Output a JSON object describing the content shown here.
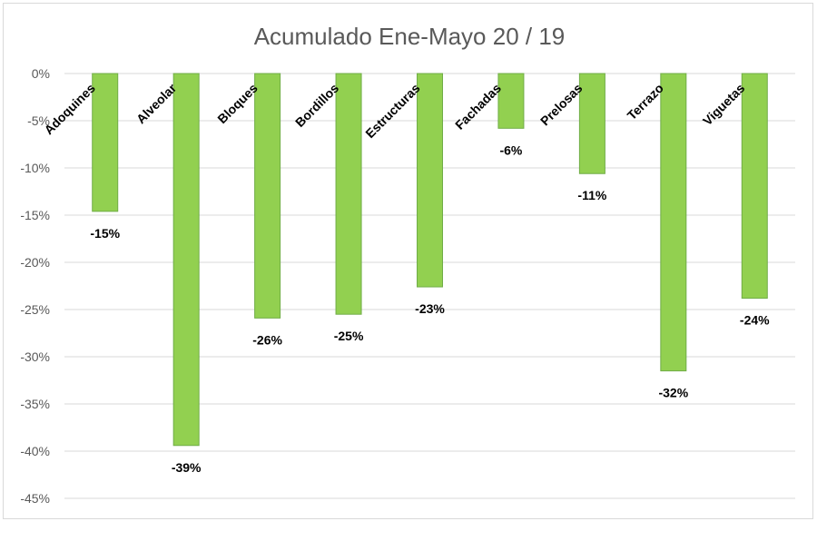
{
  "chart_data": {
    "type": "bar",
    "title": "Acumulado Ene-Mayo 20 / 19",
    "categories": [
      "Adoquines",
      "Alveolar",
      "Bloques",
      "Bordillos",
      "Estructuras",
      "Fachadas",
      "Prelosas",
      "Terrazo",
      "Viguetas"
    ],
    "values": [
      -14.6,
      -39.4,
      -25.9,
      -25.5,
      -22.6,
      -5.8,
      -10.6,
      -31.5,
      -23.8
    ],
    "data_labels": [
      "-15%",
      "-39%",
      "-26%",
      "-25%",
      "-23%",
      "-6%",
      "-11%",
      "-32%",
      "-24%"
    ],
    "ylim": [
      -45,
      0
    ],
    "yticks": [
      0,
      -5,
      -10,
      -15,
      -20,
      -25,
      -30,
      -35,
      -40,
      -45
    ],
    "ytick_labels": [
      "0%",
      "-5%",
      "-10%",
      "-15%",
      "-20%",
      "-25%",
      "-30%",
      "-35%",
      "-40%",
      "-45%"
    ],
    "xlabel": "",
    "ylabel": "",
    "grid": true,
    "legend": "none",
    "bar_color": "#92d050",
    "bar_stroke": "#70ad47"
  }
}
